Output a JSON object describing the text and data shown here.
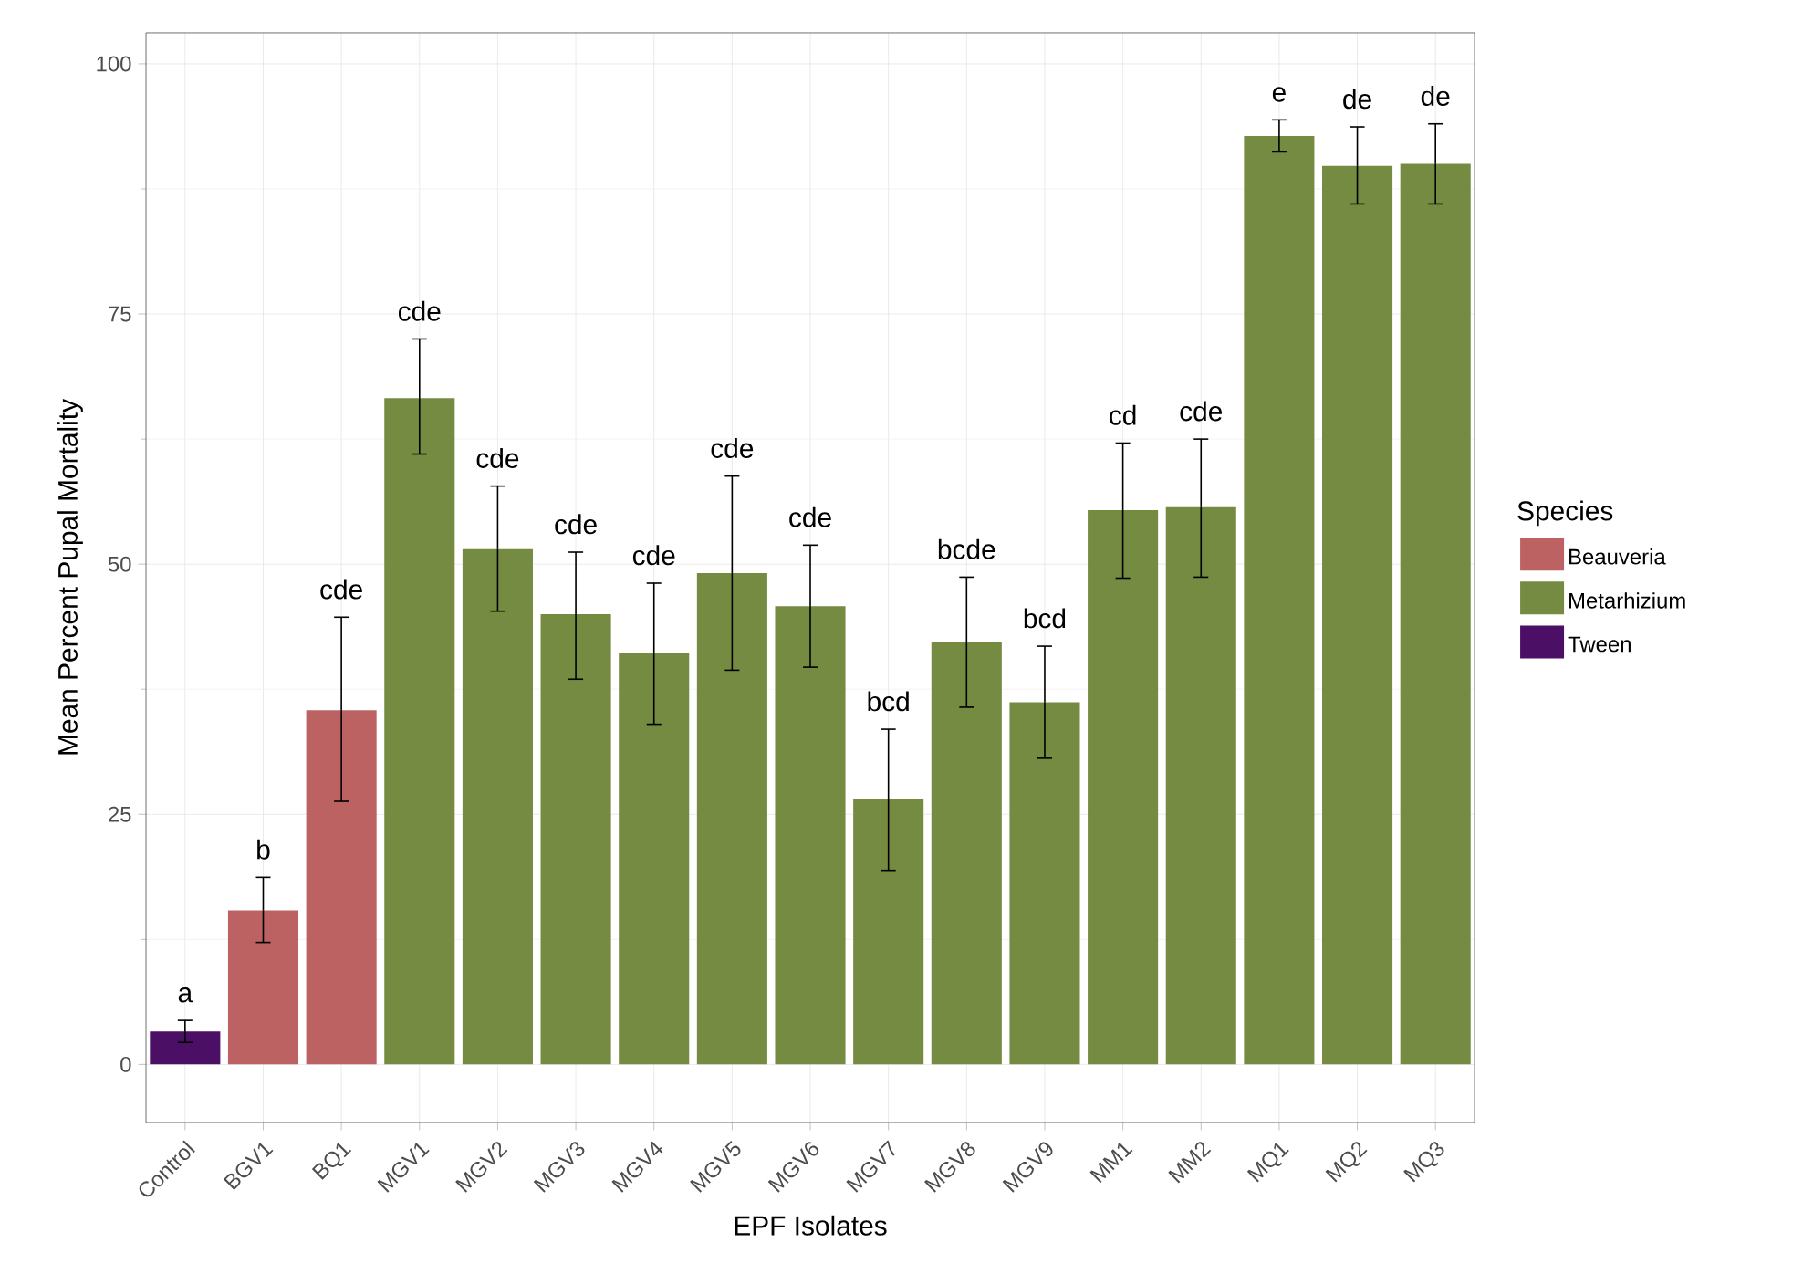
{
  "chart_data": {
    "type": "bar",
    "xlabel": "EPF Isolates",
    "ylabel": "Mean Percent Pupal Mortality",
    "legend_title": "Species",
    "legend": "right",
    "grid": true,
    "categories": [
      "Control",
      "BGV1",
      "BQ1",
      "MGV1",
      "MGV2",
      "MGV3",
      "MGV4",
      "MGV5",
      "MGV6",
      "MGV7",
      "MGV8",
      "MGV9",
      "MM1",
      "MM2",
      "MQ1",
      "MQ2",
      "MQ3"
    ],
    "ylim": [
      -5.8,
      103.1
    ],
    "yticks": [
      0,
      25,
      50,
      75,
      100
    ],
    "series": [
      {
        "name": "Beauveria",
        "color": "#bc6262",
        "values": [
          null,
          15.4,
          35.4,
          null,
          null,
          null,
          null,
          null,
          null,
          null,
          null,
          null,
          null,
          null,
          null,
          null,
          null
        ],
        "errors": [
          null,
          [
            12.2,
            18.7
          ],
          [
            26.3,
            44.7
          ],
          null,
          null,
          null,
          null,
          null,
          null,
          null,
          null,
          null,
          null,
          null,
          null,
          null,
          null
        ]
      },
      {
        "name": "Metarhizium",
        "color": "#758b42",
        "values": [
          null,
          null,
          null,
          66.6,
          51.5,
          45.0,
          41.1,
          49.1,
          45.8,
          26.5,
          42.2,
          36.2,
          55.4,
          55.7,
          92.8,
          89.8,
          90.0
        ],
        "errors": [
          null,
          null,
          null,
          [
            61.0,
            72.5
          ],
          [
            45.3,
            57.8
          ],
          [
            38.5,
            51.2
          ],
          [
            34.0,
            48.1
          ],
          [
            39.4,
            58.8
          ],
          [
            39.7,
            51.9
          ],
          [
            19.4,
            33.5
          ],
          [
            35.7,
            48.7
          ],
          [
            30.6,
            41.8
          ],
          [
            48.6,
            62.1
          ],
          [
            48.7,
            62.5
          ],
          [
            91.2,
            94.4
          ],
          [
            86.0,
            93.7
          ],
          [
            86.0,
            94.0
          ]
        ]
      },
      {
        "name": "Tween",
        "color": "#4b1065",
        "values": [
          3.3,
          null,
          null,
          null,
          null,
          null,
          null,
          null,
          null,
          null,
          null,
          null,
          null,
          null,
          null,
          null,
          null
        ],
        "errors": [
          [
            2.2,
            4.4
          ],
          null,
          null,
          null,
          null,
          null,
          null,
          null,
          null,
          null,
          null,
          null,
          null,
          null,
          null,
          null,
          null
        ]
      }
    ],
    "annotations": [
      "a",
      "b",
      "cde",
      "cde",
      "cde",
      "cde",
      "cde",
      "cde",
      "cde",
      "bcd",
      "bcde",
      "bcd",
      "cd",
      "cde",
      "e",
      "de",
      "de"
    ]
  }
}
